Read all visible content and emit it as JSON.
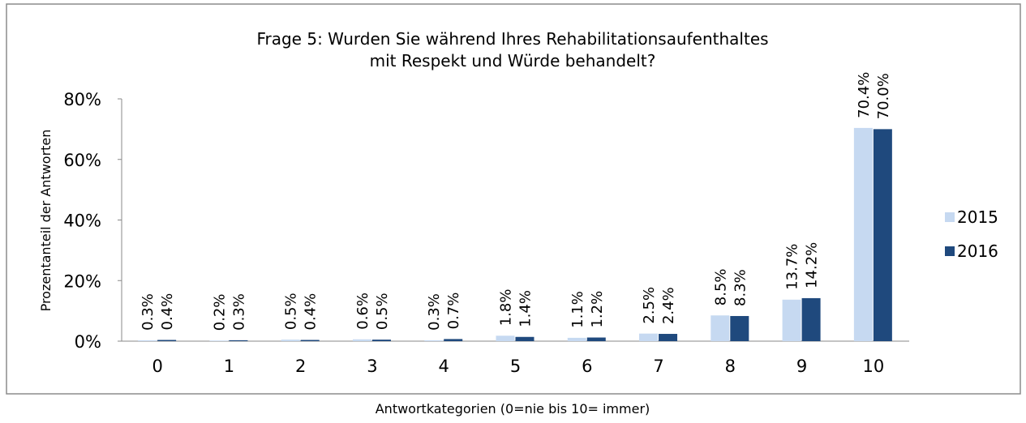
{
  "chart_data": {
    "type": "bar",
    "title": [
      "Frage 5: Wurden Sie während Ihres Rehabilitationsaufenthaltes",
      "mit Respekt und Würde behandelt?"
    ],
    "y_label": "Prozentanteil der Antworten",
    "x_label": "Antwortkategorien (0=nie bis 10= immer)",
    "categories": [
      "0",
      "1",
      "2",
      "3",
      "4",
      "5",
      "6",
      "7",
      "8",
      "9",
      "10"
    ],
    "series": [
      {
        "name": "2015",
        "color": "#c6d9f1",
        "values": [
          0.3,
          0.2,
          0.5,
          0.6,
          0.3,
          1.8,
          1.1,
          2.5,
          8.5,
          13.7,
          70.4
        ],
        "value_labels": [
          "0.3%",
          "0.2%",
          "0.5%",
          "0.6%",
          "0.3%",
          "1.8%",
          "1.1%",
          "2.5%",
          "8.5%",
          "13.7%",
          "70.4%"
        ]
      },
      {
        "name": "2016",
        "color": "#1f497d",
        "values": [
          0.4,
          0.3,
          0.4,
          0.5,
          0.7,
          1.4,
          1.2,
          2.4,
          8.3,
          14.2,
          70.0
        ],
        "value_labels": [
          "0.4%",
          "0.3%",
          "0.4%",
          "0.5%",
          "0.7%",
          "1.4%",
          "1.2%",
          "2.4%",
          "8.3%",
          "14.2%",
          "70.0%"
        ]
      }
    ],
    "ylim": [
      0,
      80
    ],
    "yticks": [
      {
        "value": 0,
        "label": "0%"
      },
      {
        "value": 20,
        "label": "20%"
      },
      {
        "value": 40,
        "label": "40%"
      },
      {
        "value": 60,
        "label": "60%"
      },
      {
        "value": 80,
        "label": "80%"
      }
    ],
    "legend": "right"
  }
}
